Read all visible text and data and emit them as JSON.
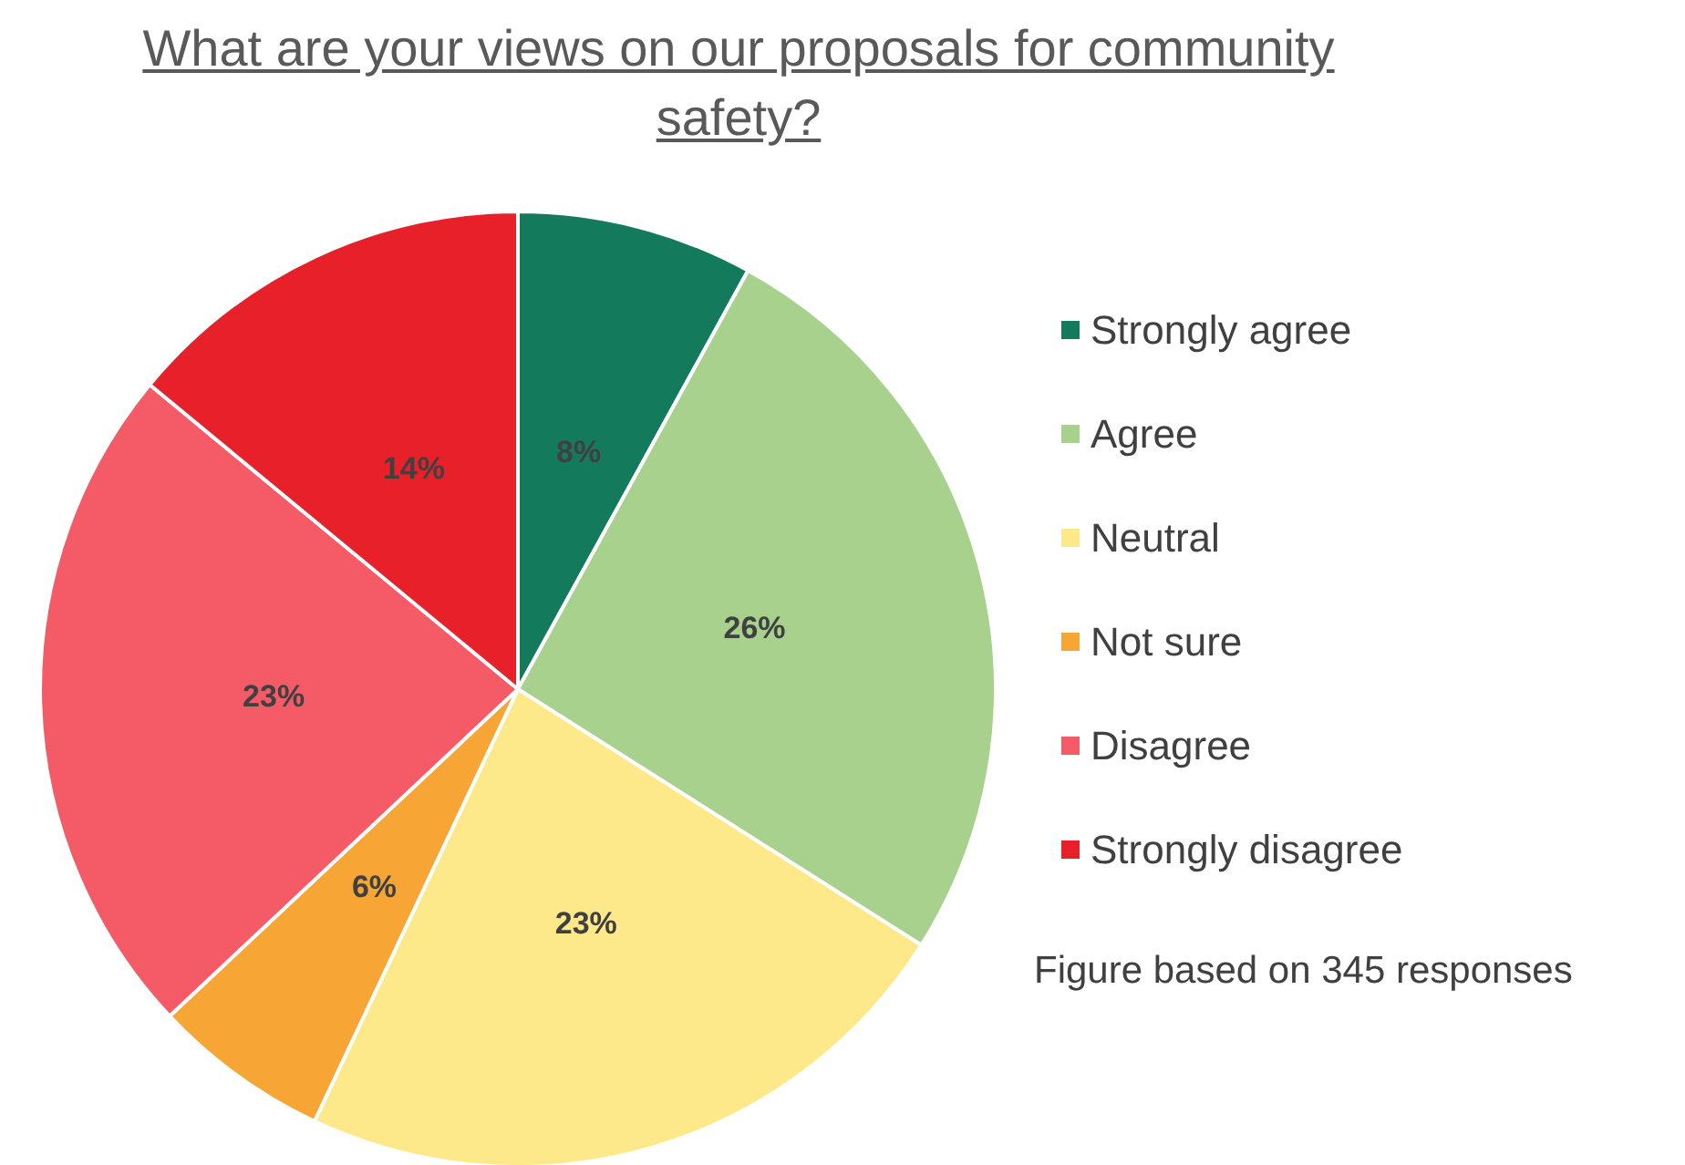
{
  "chart_data": {
    "type": "pie",
    "title": "What are your views on our proposals for community safety?",
    "categories": [
      "Strongly agree",
      "Agree",
      "Neutral",
      "Not sure",
      "Disagree",
      "Strongly disagree"
    ],
    "values": [
      8,
      26,
      23,
      6,
      23,
      14
    ],
    "value_labels": [
      "8%",
      "26%",
      "23%",
      "6%",
      "23%",
      "14%"
    ],
    "colors": [
      "#137a5c",
      "#a9d18e",
      "#fde98a",
      "#f7a534",
      "#f45b66",
      "#e8202a"
    ],
    "legend": "right",
    "annotations": [
      "Figure based on 345 responses"
    ]
  }
}
